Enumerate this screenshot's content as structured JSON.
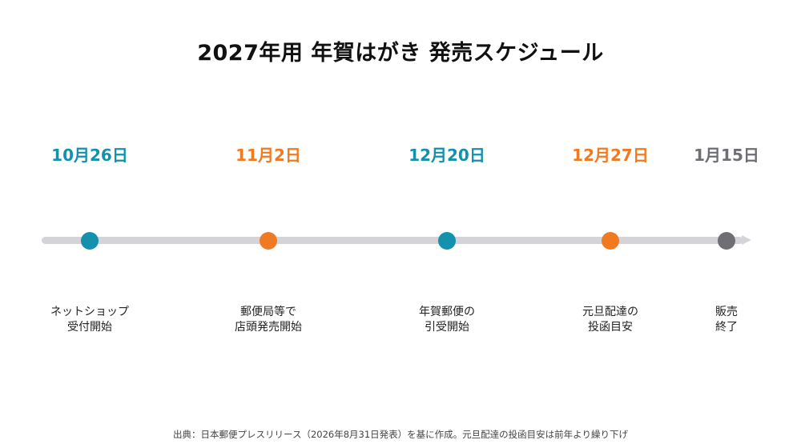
{
  "title": "2027年用 年賀はがき 発売スケジュール",
  "colors": {
    "teal": "#1391ad",
    "orange": "#f07a22",
    "gray": "#6e6e74",
    "track": "#d3d3d8"
  },
  "milestones": [
    {
      "date": "10月26日",
      "label_line1": "ネットショップ",
      "label_line2": "受付開始",
      "color": "#1391ad"
    },
    {
      "date": "11月2日",
      "label_line1": "郵便局等で",
      "label_line2": "店頭発売開始",
      "color": "#f07a22"
    },
    {
      "date": "12月20日",
      "label_line1": "年賀郵便の",
      "label_line2": "引受開始",
      "color": "#1391ad"
    },
    {
      "date": "12月27日",
      "label_line1": "元旦配達の",
      "label_line2": "投函目安",
      "color": "#f07a22"
    },
    {
      "date": "1月15日",
      "label_line1": "販売",
      "label_line2": "終了",
      "color": "#6e6e74"
    }
  ],
  "source_note": "出典：日本郵便プレスリリース（2026年8月31日発表）を基に作成。元旦配達の投函目安は前年より繰り下げ"
}
